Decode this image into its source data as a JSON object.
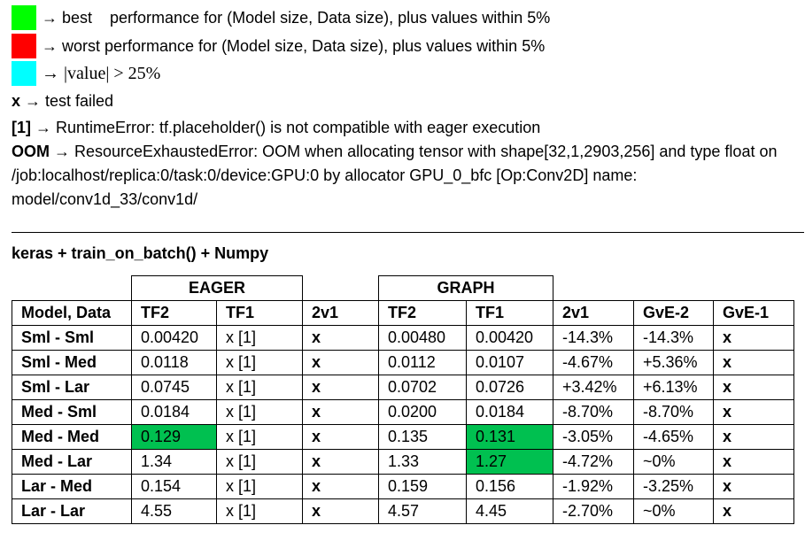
{
  "legend": [
    {
      "color": "#00ff00",
      "text": "→ best    performance for (Model size, Data size), plus values within 5%"
    },
    {
      "color": "#ff0000",
      "text": "→ worst performance for (Model size, Data size), plus values within 5%"
    },
    {
      "color": "#00ffff",
      "text": "→ |value| > 25%"
    }
  ],
  "notes": [
    {
      "key": "x",
      "text": "→ test failed"
    },
    {
      "key": "[1]",
      "text": "→ RuntimeError: tf.placeholder() is not compatible with eager execution"
    },
    {
      "key": "OOM",
      "text": "→ ResourceExhaustedError: OOM when allocating tensor with shape[32,1,2903,256] and type float on /job:localhost/replica:0/task:0/device:GPU:0 by allocator GPU_0_bfc [Op:Conv2D] name: model/conv1d_33/conv1d/"
    }
  ],
  "section_title": "keras + train_on_batch() + Numpy",
  "table": {
    "groups": [
      "EAGER",
      "GRAPH"
    ],
    "columns": [
      "Model, Data",
      "TF2",
      "TF1",
      "2v1",
      "TF2",
      "TF1",
      "2v1",
      "GvE-2",
      "GvE-1"
    ],
    "rows": [
      [
        "Sml - Sml",
        "0.00420",
        "x [1]",
        "x",
        "0.00480",
        "0.00420",
        "-14.3%",
        "-14.3%",
        "x"
      ],
      [
        "Sml - Med",
        "0.0118",
        "x [1]",
        "x",
        "0.0112",
        "0.0107",
        "-4.67%",
        "+5.36%",
        "x"
      ],
      [
        "Sml - Lar",
        "0.0745",
        "x [1]",
        "x",
        "0.0702",
        "0.0726",
        "+3.42%",
        "+6.13%",
        "x"
      ],
      [
        "Med - Sml",
        "0.0184",
        "x [1]",
        "x",
        "0.0200",
        "0.0184",
        "-8.70%",
        "-8.70%",
        "x"
      ],
      [
        "Med - Med",
        {
          "text": "0.129",
          "fill": "#00c050"
        },
        "x [1]",
        "x",
        "0.135",
        {
          "text": "0.131",
          "fill": "#00c050"
        },
        "-3.05%",
        "-4.65%",
        "x"
      ],
      [
        "Med - Lar",
        "1.34",
        "x [1]",
        "x",
        "1.33",
        {
          "text": "1.27",
          "fill": "#00c050"
        },
        "-4.72%",
        "~0%",
        "x"
      ],
      [
        "Lar - Med",
        "0.154",
        "x [1]",
        "x",
        "0.159",
        "0.156",
        "-1.92%",
        "-3.25%",
        "x"
      ],
      [
        "Lar - Lar",
        "4.55",
        "x [1]",
        "x",
        "4.57",
        "4.45",
        "-2.70%",
        "~0%",
        "x"
      ]
    ]
  }
}
